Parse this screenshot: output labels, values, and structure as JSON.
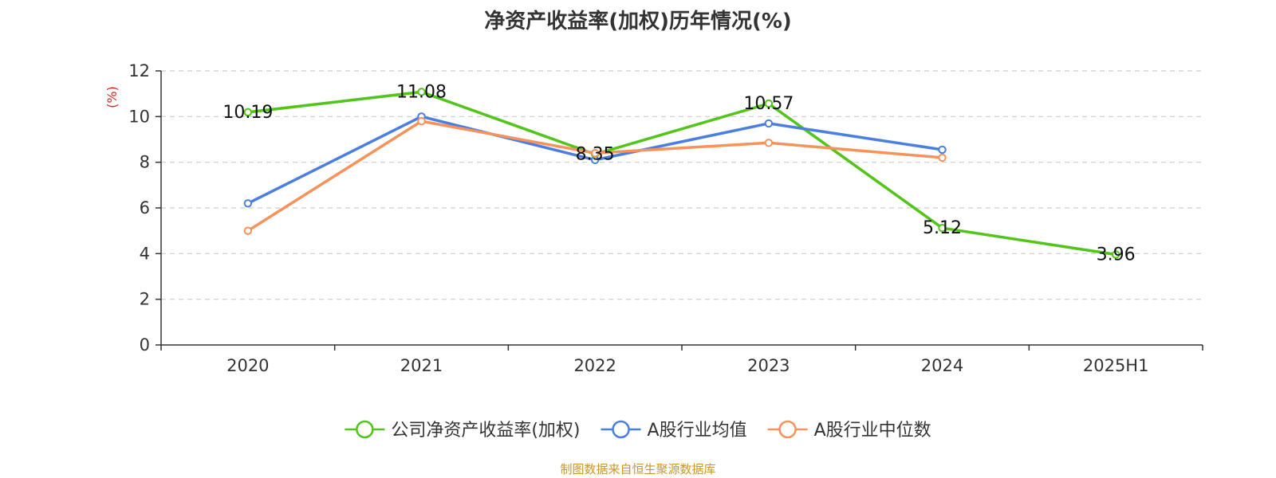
{
  "chart_data": {
    "type": "line",
    "title": "净资产收益率(加权)历年情况(%)",
    "ylabel": "(%)",
    "categories": [
      "2020",
      "2021",
      "2022",
      "2023",
      "2024",
      "2025H1"
    ],
    "ylim": [
      0,
      12
    ],
    "yticks": [
      0,
      2,
      4,
      6,
      8,
      10,
      12
    ],
    "grid": true,
    "legend_position": "bottom-center",
    "series": [
      {
        "name": "公司净资产收益率(加权)",
        "color": "#52c41a",
        "values": [
          10.19,
          11.08,
          8.35,
          10.57,
          5.12,
          3.96
        ],
        "labels": [
          "10.19",
          "11.08",
          "8.35",
          "10.57",
          "5.12",
          "3.96"
        ]
      },
      {
        "name": "A股行业均值",
        "color": "#4a7fe0",
        "values": [
          6.2,
          10.0,
          8.1,
          9.7,
          8.55,
          null
        ]
      },
      {
        "name": "A股行业中位数",
        "color": "#f7925a",
        "values": [
          5.0,
          9.8,
          8.4,
          8.85,
          8.2,
          null
        ]
      }
    ]
  },
  "colors": {
    "axis": "#333333",
    "grid": "#cccccc",
    "ylabel": "#e02020",
    "source": "#c8962c"
  },
  "source_note": "制图数据来自恒生聚源数据库"
}
